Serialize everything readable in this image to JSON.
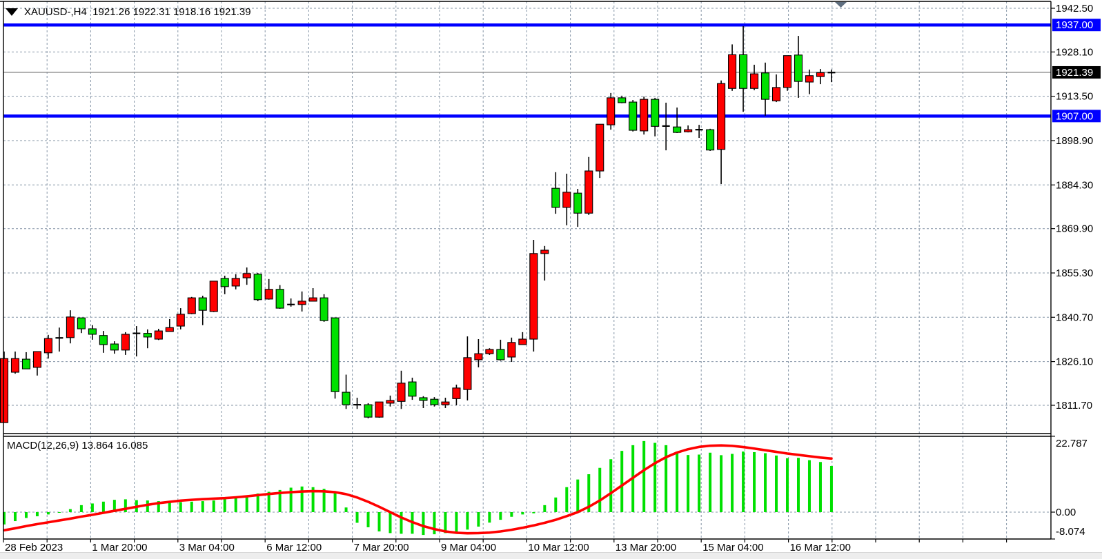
{
  "header": {
    "title": "XAUUSD-,H4  1921.26 1922.31 1918.16 1921.39",
    "dropdown_icon": "triangle-down-icon"
  },
  "indicator": {
    "label": "MACD(12,26,9) 13.864 16.085"
  },
  "price_axis": {
    "ticks": [
      "1942.50",
      "1928.10",
      "1913.50",
      "1898.90",
      "1884.30",
      "1869.90",
      "1855.30",
      "1840.70",
      "1826.10",
      "1811.70"
    ],
    "resistance_badge": "1937.00",
    "bid_badge": "1921.39",
    "support_badge": "1907.00"
  },
  "time_axis": {
    "labels": [
      "28 Feb 2023",
      "1 Mar 20:00",
      "3 Mar 04:00",
      "6 Mar 12:00",
      "7 Mar 20:00",
      "9 Mar 04:00",
      "10 Mar 12:00",
      "13 Mar 20:00",
      "15 Mar 04:00",
      "16 Mar 12:00"
    ]
  },
  "macd_axis": {
    "ticks": [
      "22.787",
      "0.00",
      "-8.074"
    ]
  },
  "colors": {
    "bull_candle": "#ff0000",
    "bear_candle": "#00e000",
    "candle_outline": "#000000",
    "grid": "#8494a6",
    "hline": "#0000ff",
    "bid_line": "#8c8c8c",
    "bid_badge_bg": "#000000",
    "level_badge_bg": "#0000ff",
    "badge_text": "#ffffff",
    "macd_histogram": "#00e000",
    "macd_signal": "#ff0000",
    "frame": "#000000",
    "shift_marker": "#5f6f80"
  },
  "chart_data": [
    {
      "type": "candlestick",
      "title": "XAUUSD H4",
      "note": "color scheme inverted: red = bullish close>open, green = bearish",
      "last_ohlc": {
        "open": 1921.26,
        "high": 1922.31,
        "low": 1918.16,
        "close": 1921.39
      },
      "hlines": [
        1937.0,
        1907.0
      ],
      "bid": 1921.39,
      "y_ticks": [
        1942.5,
        1928.1,
        1913.5,
        1898.9,
        1884.3,
        1869.9,
        1855.3,
        1840.7,
        1826.1,
        1811.7
      ],
      "x_tick_labels": [
        "28 Feb 2023",
        "1 Mar 20:00",
        "3 Mar 04:00",
        "6 Mar 12:00",
        "7 Mar 20:00",
        "9 Mar 04:00",
        "10 Mar 12:00",
        "13 Mar 20:00",
        "15 Mar 04:00",
        "16 Mar 12:00"
      ],
      "ohlc": [
        [
          1806.0,
          1829.4,
          1806.0,
          1827.1
        ],
        [
          1822.6,
          1829.4,
          1822.1,
          1827.1
        ],
        [
          1826.9,
          1829.2,
          1823.7,
          1823.7
        ],
        [
          1824.2,
          1829.4,
          1821.5,
          1829.4
        ],
        [
          1829.0,
          1834.9,
          1827.1,
          1833.7
        ],
        [
          1833.9,
          1837.3,
          1829.4,
          1833.9
        ],
        [
          1834.0,
          1843.0,
          1832.1,
          1840.8
        ],
        [
          1840.5,
          1840.5,
          1835.5,
          1836.9
        ],
        [
          1836.9,
          1838.1,
          1833.3,
          1835.1
        ],
        [
          1834.7,
          1836.2,
          1829.0,
          1831.7
        ],
        [
          1831.9,
          1832.8,
          1828.7,
          1829.9
        ],
        [
          1829.9,
          1835.8,
          1828.3,
          1835.1
        ],
        [
          1835.4,
          1837.8,
          1827.8,
          1835.4
        ],
        [
          1835.4,
          1836.7,
          1830.5,
          1834.2
        ],
        [
          1833.5,
          1836.9,
          1833.2,
          1836.2
        ],
        [
          1836.0,
          1840.1,
          1836.0,
          1837.3
        ],
        [
          1837.8,
          1843.7,
          1836.7,
          1841.7
        ],
        [
          1841.9,
          1847.4,
          1841.7,
          1847.1
        ],
        [
          1847.1,
          1847.8,
          1838.1,
          1843.0
        ],
        [
          1842.6,
          1852.6,
          1842.4,
          1852.6
        ],
        [
          1853.5,
          1854.4,
          1848.3,
          1850.8
        ],
        [
          1851.0,
          1854.9,
          1849.9,
          1853.5
        ],
        [
          1853.7,
          1857.1,
          1851.4,
          1855.1
        ],
        [
          1854.9,
          1855.3,
          1846.0,
          1846.5
        ],
        [
          1846.7,
          1853.3,
          1846.5,
          1849.9
        ],
        [
          1849.9,
          1851.3,
          1843.5,
          1843.7
        ],
        [
          1844.9,
          1846.9,
          1844.2,
          1844.9
        ],
        [
          1844.9,
          1849.2,
          1842.6,
          1846.0
        ],
        [
          1846.0,
          1850.3,
          1846.0,
          1847.1
        ],
        [
          1847.1,
          1848.3,
          1839.2,
          1839.6
        ],
        [
          1840.5,
          1840.5,
          1813.9,
          1816.2
        ],
        [
          1816.0,
          1821.8,
          1810.5,
          1811.9
        ],
        [
          1811.9,
          1814.2,
          1810.5,
          1811.9
        ],
        [
          1811.9,
          1812.4,
          1807.4,
          1807.8
        ],
        [
          1807.8,
          1812.8,
          1807.6,
          1812.8
        ],
        [
          1812.4,
          1814.9,
          1811.3,
          1813.3
        ],
        [
          1813.0,
          1823.1,
          1810.5,
          1819.0
        ],
        [
          1819.4,
          1820.8,
          1813.5,
          1814.7
        ],
        [
          1814.2,
          1814.7,
          1810.8,
          1813.3
        ],
        [
          1813.7,
          1814.4,
          1811.3,
          1811.9
        ],
        [
          1811.9,
          1814.2,
          1810.8,
          1812.8
        ],
        [
          1813.9,
          1818.5,
          1811.7,
          1817.4
        ],
        [
          1816.9,
          1834.4,
          1813.3,
          1827.4
        ],
        [
          1826.7,
          1833.5,
          1824.2,
          1828.7
        ],
        [
          1828.7,
          1830.5,
          1828.3,
          1830.1
        ],
        [
          1830.1,
          1833.3,
          1826.4,
          1826.7
        ],
        [
          1827.6,
          1834.0,
          1826.0,
          1832.4
        ],
        [
          1831.7,
          1835.8,
          1831.7,
          1833.5
        ],
        [
          1833.5,
          1866.2,
          1829.4,
          1861.7
        ],
        [
          1861.7,
          1864.2,
          1852.8,
          1862.8
        ],
        [
          1883.2,
          1888.5,
          1874.8,
          1876.9
        ],
        [
          1876.9,
          1888.0,
          1871.0,
          1881.9
        ],
        [
          1881.6,
          1883.0,
          1870.5,
          1875.0
        ],
        [
          1875.0,
          1893.5,
          1874.4,
          1888.9
        ],
        [
          1888.9,
          1904.3,
          1886.6,
          1904.3
        ],
        [
          1904.1,
          1914.6,
          1902.5,
          1913.0
        ],
        [
          1913.0,
          1913.7,
          1911.2,
          1911.4
        ],
        [
          1911.6,
          1912.3,
          1901.9,
          1902.3
        ],
        [
          1902.1,
          1913.4,
          1900.9,
          1912.5
        ],
        [
          1912.5,
          1913.0,
          1900.3,
          1903.6
        ],
        [
          1903.7,
          1911.4,
          1895.7,
          1903.7
        ],
        [
          1903.4,
          1909.8,
          1901.4,
          1901.6
        ],
        [
          1901.8,
          1903.9,
          1901.6,
          1902.5
        ],
        [
          1902.5,
          1904.1,
          1899.8,
          1902.5
        ],
        [
          1902.5,
          1902.8,
          1895.5,
          1895.8
        ],
        [
          1896.0,
          1918.7,
          1884.6,
          1917.7
        ],
        [
          1916.1,
          1930.6,
          1915.3,
          1927.2
        ],
        [
          1927.2,
          1936.6,
          1908.4,
          1916.1
        ],
        [
          1916.1,
          1923.9,
          1915.5,
          1920.9
        ],
        [
          1921.2,
          1924.6,
          1907.1,
          1912.5
        ],
        [
          1912.0,
          1920.7,
          1911.6,
          1916.4
        ],
        [
          1916.4,
          1926.9,
          1915.3,
          1926.9
        ],
        [
          1927.1,
          1933.4,
          1913.0,
          1918.4
        ],
        [
          1918.2,
          1922.3,
          1914.2,
          1920.3
        ],
        [
          1920.0,
          1922.5,
          1917.5,
          1921.3
        ],
        [
          1921.26,
          1922.31,
          1918.16,
          1921.39
        ]
      ]
    },
    {
      "type": "bar",
      "name": "MACD(12,26,9)",
      "macd_value": 13.864,
      "signal_value": 16.085,
      "y_ticks": [
        22.787,
        0.0,
        -8.074
      ],
      "histogram": [
        -3.7,
        -2.7,
        -1.75,
        -1.25,
        -0.7,
        -0.2,
        0.9,
        2.1,
        2.6,
        3.15,
        3.7,
        3.85,
        3.6,
        3.5,
        3.3,
        3.15,
        3.0,
        3.15,
        3.3,
        3.5,
        4.0,
        4.55,
        5.0,
        5.6,
        6.1,
        6.65,
        7.35,
        7.7,
        7.5,
        7.0,
        5.8,
        1.4,
        -3.2,
        -4.55,
        -5.8,
        -6.3,
        -6.5,
        -6.5,
        -6.85,
        -6.65,
        -6.3,
        -6.1,
        -5.25,
        -4.35,
        -3.15,
        -2.3,
        -1.4,
        -0.7,
        -0.35,
        2.1,
        4.4,
        7.5,
        9.8,
        11.4,
        13.3,
        15.9,
        18.4,
        20.1,
        21.35,
        20.8,
        20.1,
        18.2,
        17.15,
        17.3,
        17.85,
        17.1,
        17.5,
        18.2,
        18.0,
        17.7,
        17.0,
        16.2,
        16.3,
        15.6,
        15.05,
        13.864
      ],
      "signal": [
        -5.45,
        -4.85,
        -4.2,
        -3.6,
        -3.05,
        -2.5,
        -1.95,
        -1.35,
        -0.8,
        -0.2,
        0.4,
        1.0,
        1.6,
        2.2,
        2.7,
        3.1,
        3.45,
        3.7,
        3.9,
        4.05,
        4.2,
        4.45,
        4.75,
        5.1,
        5.45,
        5.75,
        6.0,
        6.2,
        6.3,
        6.25,
        6.0,
        5.4,
        4.4,
        3.1,
        1.6,
        0.0,
        -1.6,
        -3.0,
        -4.2,
        -5.1,
        -5.8,
        -6.2,
        -6.35,
        -6.3,
        -6.15,
        -5.8,
        -5.3,
        -4.7,
        -4.0,
        -3.2,
        -2.3,
        -1.2,
        0.0,
        1.6,
        3.5,
        5.7,
        8.0,
        10.3,
        12.6,
        14.7,
        16.5,
        17.9,
        18.9,
        19.6,
        19.95,
        20.05,
        19.9,
        19.55,
        19.1,
        18.6,
        18.1,
        17.6,
        17.2,
        16.8,
        16.4,
        16.085
      ]
    }
  ]
}
